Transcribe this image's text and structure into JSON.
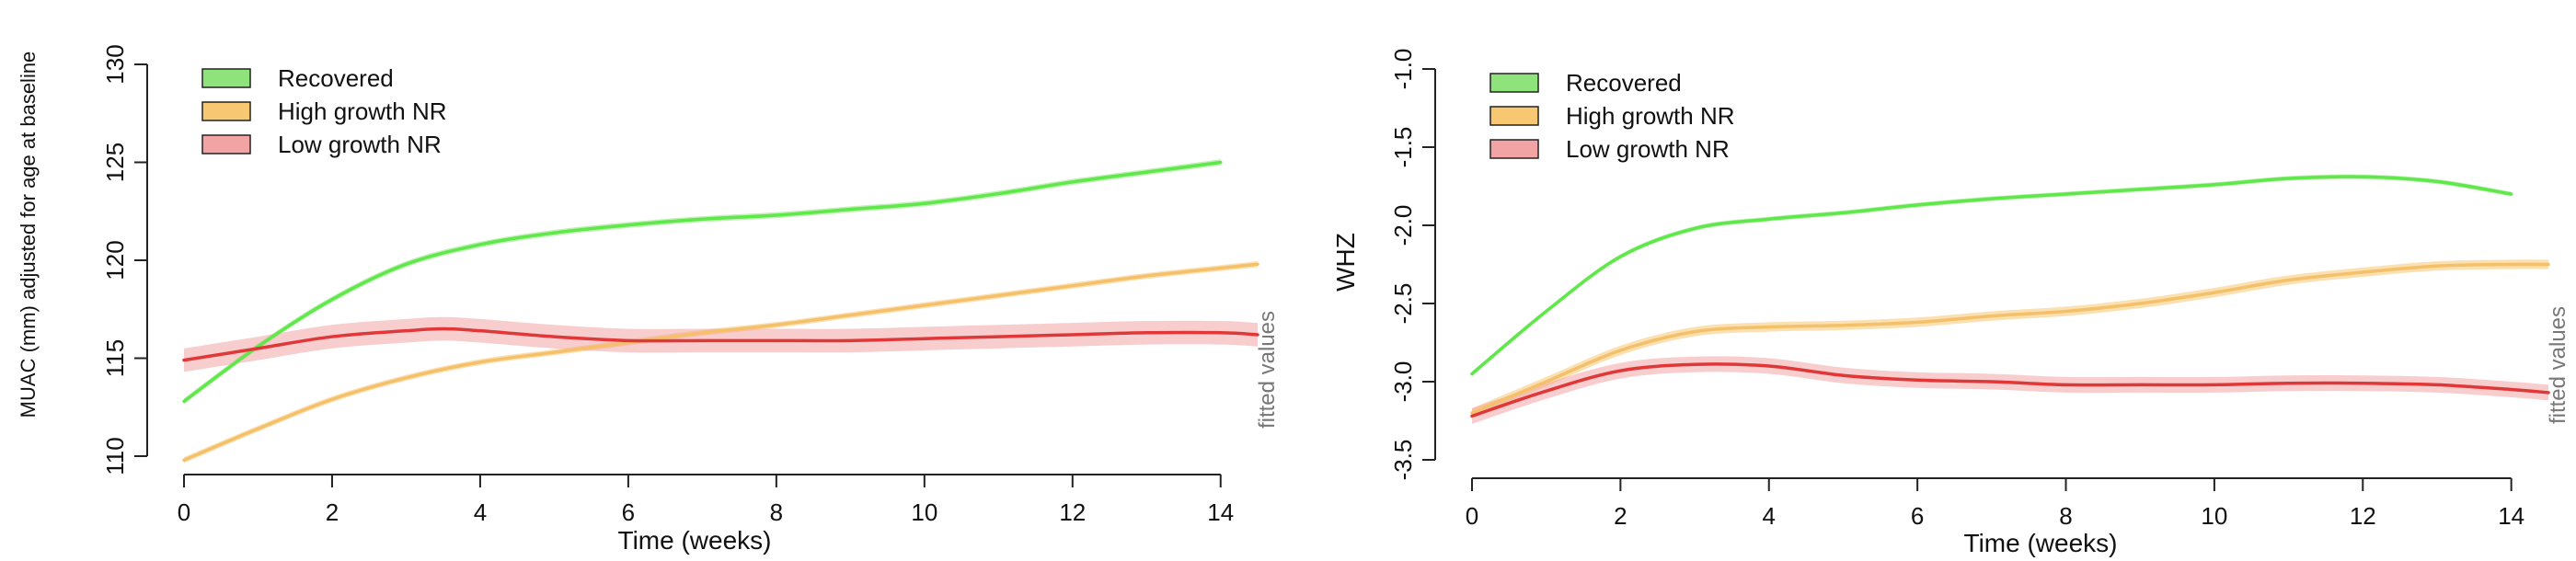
{
  "chart_data": [
    {
      "type": "line",
      "xlabel": "Time (weeks)",
      "ylabel": "MUAC (mm) adjusted for age at baseline",
      "side_label": "fitted values",
      "xlim": [
        0,
        14.5
      ],
      "ylim": [
        110,
        130
      ],
      "xticks": [
        0,
        2,
        4,
        6,
        8,
        10,
        12,
        14
      ],
      "yticks": [
        110,
        115,
        120,
        125,
        130
      ],
      "grid": false,
      "legend_position": "top-left",
      "series": [
        {
          "name": "Recovered",
          "color": "#5fe84a",
          "fill": "#8ee37a",
          "band": 0.15,
          "x": [
            0,
            1,
            2,
            3,
            4,
            5,
            6,
            7,
            8,
            9,
            10,
            11,
            12,
            13,
            14
          ],
          "y": [
            112.8,
            115.6,
            118.0,
            119.8,
            120.8,
            121.4,
            121.8,
            122.1,
            122.3,
            122.6,
            122.9,
            123.4,
            124.0,
            124.5,
            125.0
          ]
        },
        {
          "name": "High growth NR",
          "color": "#f5c06a",
          "fill": "#f7c772",
          "band": 0.15,
          "x": [
            0,
            1,
            2,
            3,
            4,
            5,
            6,
            7,
            8,
            9,
            10,
            11,
            12,
            13,
            14,
            14.5
          ],
          "y": [
            109.8,
            111.4,
            112.9,
            114.0,
            114.8,
            115.3,
            115.8,
            116.3,
            116.7,
            117.2,
            117.7,
            118.2,
            118.7,
            119.2,
            119.6,
            119.8
          ]
        },
        {
          "name": "Low growth NR",
          "color": "#e03838",
          "fill": "#f2a4a4",
          "band": 0.6,
          "x": [
            0,
            1,
            2,
            3,
            3.5,
            4,
            5,
            6,
            7,
            8,
            9,
            10,
            11,
            12,
            13,
            14,
            14.5
          ],
          "y": [
            114.9,
            115.5,
            116.1,
            116.4,
            116.5,
            116.4,
            116.1,
            115.9,
            115.9,
            115.9,
            115.9,
            116.0,
            116.1,
            116.2,
            116.3,
            116.3,
            116.2
          ]
        }
      ]
    },
    {
      "type": "line",
      "xlabel": "Time (weeks)",
      "ylabel": "WHZ",
      "side_label": "fitted values",
      "xlim": [
        0,
        14.5
      ],
      "ylim": [
        -3.5,
        -1.0
      ],
      "xticks": [
        0,
        2,
        4,
        6,
        8,
        10,
        12,
        14
      ],
      "yticks": [
        -3.5,
        -3.0,
        -2.5,
        -2.0,
        -1.5,
        -1.0
      ],
      "ytick_labels": [
        "-3.5",
        "-3.0",
        "-2.5",
        "-2.0",
        "-1.5",
        "-1.0"
      ],
      "grid": false,
      "legend_position": "top-left",
      "series": [
        {
          "name": "Recovered",
          "color": "#5fe84a",
          "fill": "#8ee37a",
          "band": 0.015,
          "x": [
            0,
            1,
            2,
            3,
            4,
            5,
            6,
            7,
            8,
            9,
            10,
            11,
            12,
            13,
            14
          ],
          "y": [
            -2.95,
            -2.55,
            -2.2,
            -2.02,
            -1.96,
            -1.92,
            -1.87,
            -1.83,
            -1.8,
            -1.77,
            -1.74,
            -1.7,
            -1.69,
            -1.72,
            -1.8
          ]
        },
        {
          "name": "High growth NR",
          "color": "#f5c06a",
          "fill": "#f7c772",
          "band": 0.03,
          "x": [
            0,
            1,
            2,
            3,
            4,
            5,
            6,
            7,
            8,
            9,
            10,
            11,
            12,
            13,
            14,
            14.5
          ],
          "y": [
            -3.2,
            -3.0,
            -2.8,
            -2.68,
            -2.65,
            -2.64,
            -2.62,
            -2.58,
            -2.55,
            -2.5,
            -2.43,
            -2.35,
            -2.3,
            -2.26,
            -2.25,
            -2.25
          ]
        },
        {
          "name": "Low growth NR",
          "color": "#e03838",
          "fill": "#f2a4a4",
          "band": 0.05,
          "x": [
            0,
            1,
            2,
            3,
            4,
            5,
            6,
            7,
            8,
            9,
            10,
            11,
            12,
            13,
            14,
            14.5
          ],
          "y": [
            -3.22,
            -3.06,
            -2.93,
            -2.89,
            -2.9,
            -2.96,
            -2.99,
            -3.0,
            -3.02,
            -3.02,
            -3.02,
            -3.01,
            -3.01,
            -3.02,
            -3.05,
            -3.07
          ]
        }
      ]
    }
  ]
}
